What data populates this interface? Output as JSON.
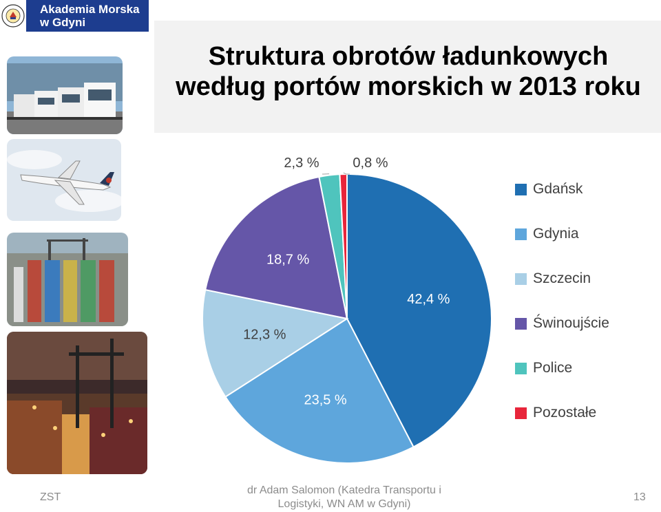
{
  "header": {
    "logo_line1": "Akademia Morska",
    "logo_line2": "w Gdyni",
    "seal_text": "AKADEMIA MORSKA GDYNIA"
  },
  "title": {
    "line1": "Struktura obrotów ładunkowych",
    "line2": "według portów morskich w 2013 roku"
  },
  "photos": [
    {
      "icon": "trucks-photo-icon"
    },
    {
      "icon": "airplane-photo-icon"
    },
    {
      "icon": "container-terminal-photo-icon"
    },
    {
      "icon": "port-night-photo-icon"
    }
  ],
  "chart_data": {
    "type": "pie",
    "categories": [
      "Gdańsk",
      "Gdynia",
      "Szczecin",
      "Świnoujście",
      "Police",
      "Pozostałe"
    ],
    "values": [
      42.4,
      23.5,
      12.3,
      18.7,
      2.3,
      0.8
    ],
    "value_labels": [
      "42,4 %",
      "23,5 %",
      "12,3 %",
      "18,7 %",
      "2,3 %",
      "0,8 %"
    ],
    "colors": [
      "#1f6fb2",
      "#5ea6dc",
      "#a9cfe6",
      "#6556a8",
      "#4fc4bd",
      "#e8253a"
    ],
    "legend_position": "right",
    "start_angle_deg": 0,
    "direction": "clockwise"
  },
  "footer": {
    "left": "ZST",
    "center_line1": "dr Adam Salomon (Katedra Transportu i",
    "center_line2": "Logistyki, WN AM w Gdyni)",
    "page_number": "13"
  }
}
